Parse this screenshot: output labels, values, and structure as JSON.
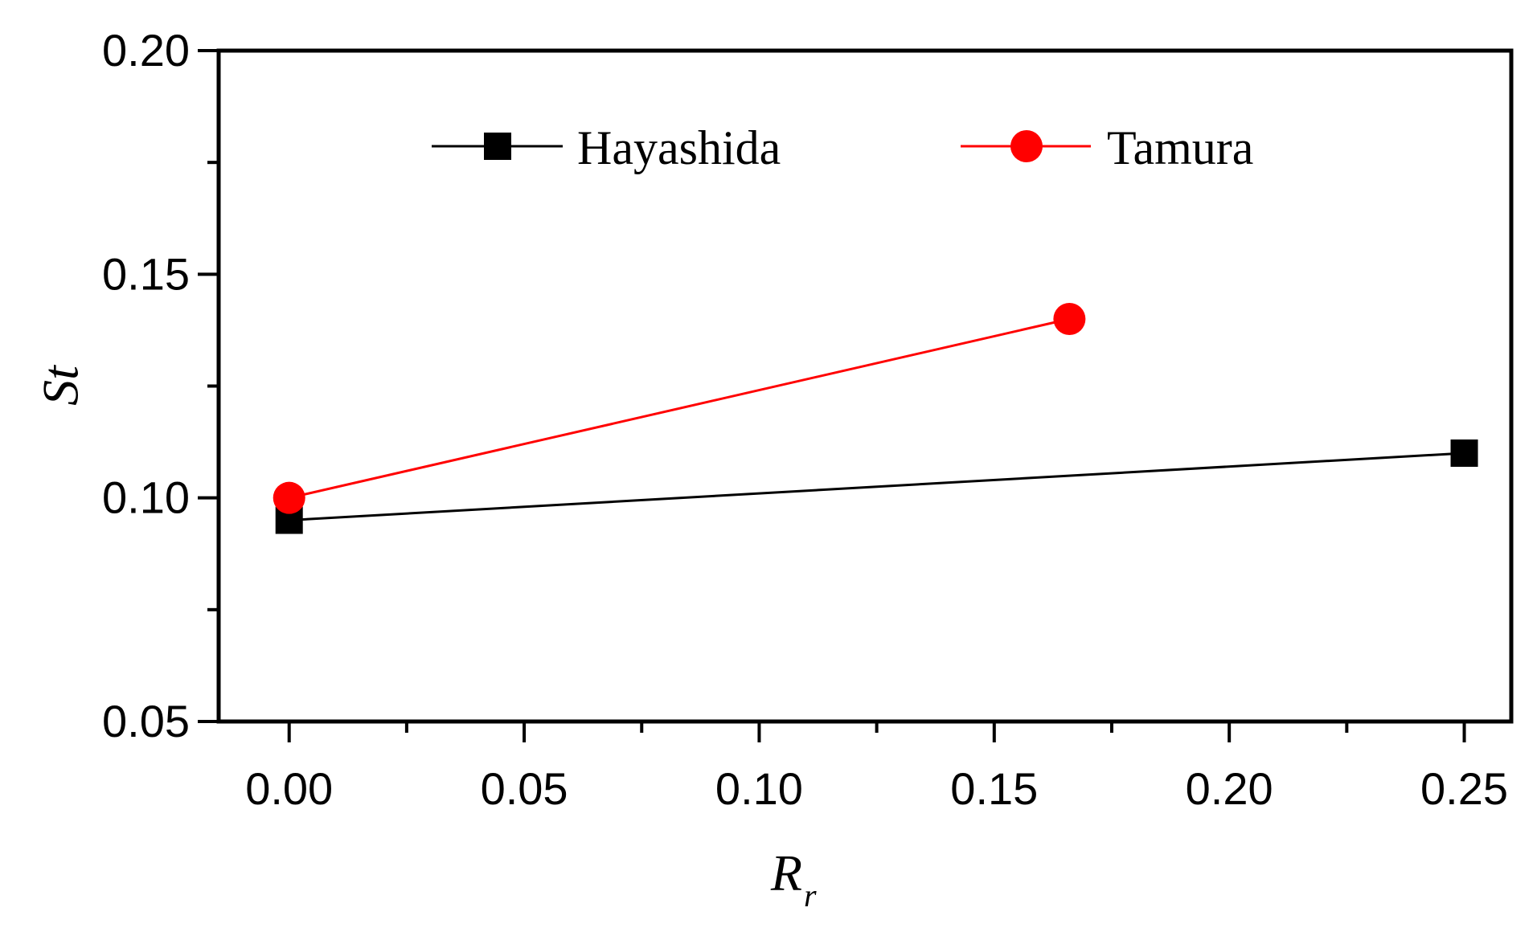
{
  "chart_data": {
    "type": "line",
    "xlabel": "R",
    "xlabel_sub": "r",
    "ylabel": "St",
    "xlim": [
      -0.015,
      0.26
    ],
    "ylim": [
      0.05,
      0.2
    ],
    "xticks": [
      "0.00",
      "0.05",
      "0.10",
      "0.15",
      "0.20",
      "0.25"
    ],
    "yticks": [
      "0.05",
      "0.10",
      "0.15",
      "0.20"
    ],
    "legend_position": "top",
    "series": [
      {
        "name": "Hayashida",
        "color": "#000000",
        "marker": "square",
        "x": [
          0.0,
          0.25
        ],
        "y": [
          0.095,
          0.11
        ]
      },
      {
        "name": "Tamura",
        "color": "#ff0000",
        "marker": "circle",
        "x": [
          0.0,
          0.166
        ],
        "y": [
          0.1,
          0.14
        ]
      }
    ]
  }
}
